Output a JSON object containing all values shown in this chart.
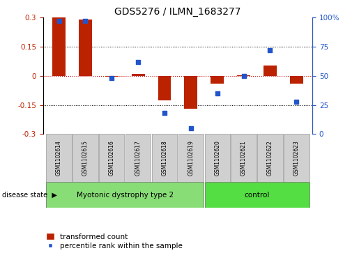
{
  "title": "GDS5276 / ILMN_1683277",
  "categories": [
    "GSM1102614",
    "GSM1102615",
    "GSM1102616",
    "GSM1102617",
    "GSM1102618",
    "GSM1102619",
    "GSM1102620",
    "GSM1102621",
    "GSM1102622",
    "GSM1102623"
  ],
  "bar_values": [
    0.3,
    0.29,
    -0.005,
    0.01,
    -0.125,
    -0.17,
    -0.04,
    0.005,
    0.055,
    -0.04
  ],
  "scatter_values": [
    97,
    97,
    48,
    62,
    18,
    5,
    35,
    50,
    72,
    28
  ],
  "ylim": [
    -0.3,
    0.3
  ],
  "y2lim": [
    0,
    100
  ],
  "bar_color": "#bb2200",
  "scatter_color": "#2255cc",
  "zero_line_color": "#cc0000",
  "label_box_color": "#d0d0d0",
  "disease_groups": [
    {
      "label": "Myotonic dystrophy type 2",
      "n_samples": 6,
      "color": "#88dd77"
    },
    {
      "label": "control",
      "n_samples": 4,
      "color": "#55dd44"
    }
  ],
  "disease_state_label": "disease state",
  "legend_bar_label": "transformed count",
  "legend_scatter_label": "percentile rank within the sample",
  "yticks_left": [
    -0.3,
    -0.15,
    0.0,
    0.15,
    0.3
  ],
  "yticks_right": [
    0,
    25,
    50,
    75,
    100
  ],
  "figsize": [
    5.15,
    3.63
  ],
  "dpi": 100
}
